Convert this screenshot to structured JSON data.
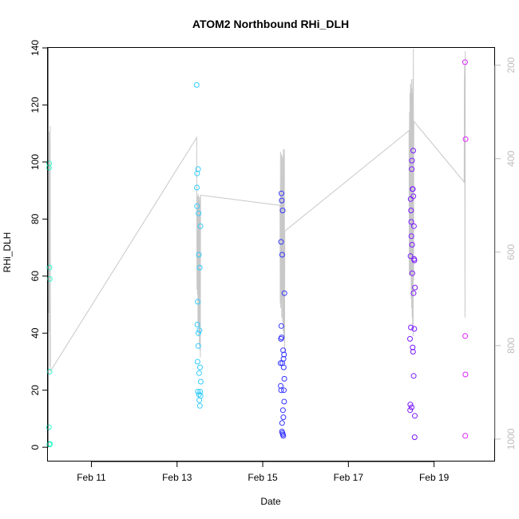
{
  "chart_data": {
    "type": "scatter",
    "title": "ATOM2 Northbound RHi_DLH",
    "xlabel": "Date",
    "ylabel": "RHi_DLH",
    "xlim": [
      "2017-02-09 23:38",
      "2017-02-20 10:10"
    ],
    "ylim": [
      -5,
      140
    ],
    "x_ticks": [
      "Feb 11",
      "Feb 13",
      "Feb 15",
      "Feb 17",
      "Feb 19"
    ],
    "y_ticks": [
      0,
      20,
      40,
      60,
      80,
      100,
      120,
      140
    ],
    "y2_label": "",
    "y2_ticks": [
      200,
      400,
      600,
      800,
      1000
    ],
    "y2_lim": [
      1048,
      163
    ],
    "grid": false,
    "legend": "none",
    "colors": {
      "flight1": "#33ffcc",
      "flight2": "#33ccff",
      "flight3": "#3333ff",
      "flight4": "#7a1aff",
      "flight5": "#dd22ff",
      "pressure_line": "#c8c8c8",
      "axis": "#000000",
      "right_axis": "#bdbdbd"
    },
    "series": [
      {
        "values": [
          [
            "2017-02-10 00:10",
            7
          ],
          [
            "2017-02-10 00:14",
            98
          ],
          [
            "2017-02-10 00:18",
            99.5
          ],
          [
            "2017-02-10 00:24",
            1
          ],
          [
            "2017-02-10 00:30",
            63
          ],
          [
            "2017-02-10 00:34",
            26.5
          ],
          [
            "2017-02-10 00:38",
            59
          ],
          [
            "2017-02-10 00:42",
            1
          ],
          [
            "2017-02-10 00:46",
            1.2
          ]
        ]
      },
      {
        "values": [
          [
            "2017-02-13 11:00",
            127
          ],
          [
            "2017-02-13 11:05",
            91
          ],
          [
            "2017-02-13 11:10",
            84.5
          ],
          [
            "2017-02-13 11:16",
            96
          ],
          [
            "2017-02-13 11:22",
            43
          ],
          [
            "2017-02-13 11:28",
            30
          ],
          [
            "2017-02-13 11:34",
            51
          ],
          [
            "2017-02-13 11:40",
            19.5
          ],
          [
            "2017-02-13 11:46",
            97.5
          ],
          [
            "2017-02-13 11:52",
            35.5
          ],
          [
            "2017-02-13 11:58",
            40
          ],
          [
            "2017-02-13 12:04",
            82
          ],
          [
            "2017-02-13 12:10",
            67.5
          ],
          [
            "2017-02-13 12:16",
            18.5
          ],
          [
            "2017-02-13 12:22",
            26
          ],
          [
            "2017-02-13 12:28",
            16.5
          ],
          [
            "2017-02-13 12:34",
            41
          ],
          [
            "2017-02-13 12:40",
            63
          ],
          [
            "2017-02-13 12:46",
            14.5
          ],
          [
            "2017-02-13 12:52",
            28
          ],
          [
            "2017-02-13 12:58",
            19.5
          ],
          [
            "2017-02-13 13:04",
            77.5
          ],
          [
            "2017-02-13 13:10",
            18
          ],
          [
            "2017-02-13 13:16",
            23
          ]
        ]
      },
      {
        "values": [
          [
            "2017-02-15 10:00",
            29.5
          ],
          [
            "2017-02-15 10:05",
            21.5
          ],
          [
            "2017-02-15 10:10",
            38
          ],
          [
            "2017-02-15 10:15",
            72
          ],
          [
            "2017-02-15 10:20",
            20
          ],
          [
            "2017-02-15 10:25",
            42.5
          ],
          [
            "2017-02-15 10:30",
            89
          ],
          [
            "2017-02-15 10:35",
            38.5
          ],
          [
            "2017-02-15 10:40",
            86.5
          ],
          [
            "2017-02-15 10:45",
            5.5
          ],
          [
            "2017-02-15 10:50",
            8.5
          ],
          [
            "2017-02-15 10:55",
            67.5
          ],
          [
            "2017-02-15 11:00",
            29.5
          ],
          [
            "2017-02-15 11:05",
            5
          ],
          [
            "2017-02-15 11:10",
            83
          ],
          [
            "2017-02-15 11:15",
            4.5
          ],
          [
            "2017-02-15 11:20",
            13
          ],
          [
            "2017-02-15 11:25",
            34
          ],
          [
            "2017-02-15 11:30",
            4
          ],
          [
            "2017-02-15 11:35",
            10.5
          ],
          [
            "2017-02-15 11:40",
            31
          ],
          [
            "2017-02-15 11:45",
            28
          ],
          [
            "2017-02-15 11:50",
            20
          ],
          [
            "2017-02-15 11:55",
            32.5
          ],
          [
            "2017-02-15 12:00",
            16
          ],
          [
            "2017-02-15 12:05",
            24
          ],
          [
            "2017-02-15 12:10",
            54
          ]
        ]
      },
      {
        "values": [
          [
            "2017-02-18 10:30",
            38
          ],
          [
            "2017-02-18 10:36",
            13
          ],
          [
            "2017-02-18 10:42",
            15
          ],
          [
            "2017-02-18 10:48",
            67
          ],
          [
            "2017-02-18 10:54",
            87
          ],
          [
            "2017-02-18 11:00",
            42
          ],
          [
            "2017-02-18 11:06",
            83
          ],
          [
            "2017-02-18 11:12",
            79
          ],
          [
            "2017-02-18 11:18",
            74
          ],
          [
            "2017-02-18 11:24",
            14
          ],
          [
            "2017-02-18 11:30",
            97.5
          ],
          [
            "2017-02-18 11:36",
            100.5
          ],
          [
            "2017-02-18 11:42",
            71
          ],
          [
            "2017-02-18 11:48",
            61
          ],
          [
            "2017-02-18 11:54",
            90.5
          ],
          [
            "2017-02-18 12:00",
            35
          ],
          [
            "2017-02-18 12:06",
            90.5
          ],
          [
            "2017-02-18 12:12",
            33.5
          ],
          [
            "2017-02-18 12:18",
            104
          ],
          [
            "2017-02-18 12:24",
            88
          ],
          [
            "2017-02-18 12:30",
            54
          ],
          [
            "2017-02-18 12:36",
            25
          ],
          [
            "2017-02-18 12:42",
            77.5
          ],
          [
            "2017-02-18 12:48",
            66
          ],
          [
            "2017-02-18 12:54",
            41.5
          ],
          [
            "2017-02-18 13:00",
            65.5
          ],
          [
            "2017-02-18 13:06",
            3.5
          ],
          [
            "2017-02-18 13:12",
            11
          ],
          [
            "2017-02-18 13:18",
            56
          ]
        ]
      },
      {
        "values": [
          [
            "2017-02-19 17:20",
            135
          ],
          [
            "2017-02-19 17:25",
            39
          ],
          [
            "2017-02-19 17:30",
            4
          ],
          [
            "2017-02-19 17:35",
            25.5
          ],
          [
            "2017-02-19 17:40",
            108
          ]
        ]
      }
    ],
    "pressure_line": [
      [
        "2017-02-10 00:10",
        730
      ],
      [
        "2017-02-10 00:20",
        342
      ],
      [
        "2017-02-10 00:30",
        770
      ],
      [
        "2017-02-10 00:38",
        358
      ],
      [
        "2017-02-10 00:46",
        845
      ],
      [
        "2017-02-10 00:54",
        330
      ],
      [
        "2017-02-10 01:02",
        855
      ],
      [
        "2017-02-13 11:00",
        355
      ],
      [
        "2017-02-13 11:10",
        680
      ],
      [
        "2017-02-13 11:18",
        490
      ],
      [
        "2017-02-13 11:26",
        690
      ],
      [
        "2017-02-13 11:34",
        480
      ],
      [
        "2017-02-13 11:42",
        755
      ],
      [
        "2017-02-13 11:50",
        475
      ],
      [
        "2017-02-13 11:58",
        760
      ],
      [
        "2017-02-13 12:06",
        480
      ],
      [
        "2017-02-13 12:14",
        780
      ],
      [
        "2017-02-13 12:22",
        490
      ],
      [
        "2017-02-13 12:30",
        800
      ],
      [
        "2017-02-13 12:38",
        482
      ],
      [
        "2017-02-13 12:46",
        810
      ],
      [
        "2017-02-13 12:54",
        490
      ],
      [
        "2017-02-13 13:02",
        825
      ],
      [
        "2017-02-13 13:10",
        478
      ],
      [
        "2017-02-15 09:40",
        500
      ],
      [
        "2017-02-15 09:50",
        710
      ],
      [
        "2017-02-15 09:58",
        385
      ],
      [
        "2017-02-15 10:06",
        720
      ],
      [
        "2017-02-15 10:14",
        480
      ],
      [
        "2017-02-15 10:22",
        705
      ],
      [
        "2017-02-15 10:30",
        390
      ],
      [
        "2017-02-15 10:38",
        740
      ],
      [
        "2017-02-15 10:46",
        560
      ],
      [
        "2017-02-15 10:54",
        700
      ],
      [
        "2017-02-15 11:02",
        395
      ],
      [
        "2017-02-15 11:10",
        750
      ],
      [
        "2017-02-15 11:18",
        400
      ],
      [
        "2017-02-15 11:26",
        770
      ],
      [
        "2017-02-15 11:34",
        380
      ],
      [
        "2017-02-15 11:42",
        780
      ],
      [
        "2017-02-15 11:50",
        390
      ],
      [
        "2017-02-15 11:58",
        790
      ],
      [
        "2017-02-15 12:06",
        380
      ],
      [
        "2017-02-15 12:14",
        815
      ],
      [
        "2017-02-15 12:22",
        555
      ],
      [
        "2017-02-18 10:00",
        340
      ],
      [
        "2017-02-18 10:08",
        650
      ],
      [
        "2017-02-18 10:16",
        300
      ],
      [
        "2017-02-18 10:24",
        650
      ],
      [
        "2017-02-18 10:32",
        260
      ],
      [
        "2017-02-18 10:40",
        650
      ],
      [
        "2017-02-18 10:48",
        240
      ],
      [
        "2017-02-18 10:56",
        650
      ],
      [
        "2017-02-18 11:04",
        250
      ],
      [
        "2017-02-18 11:12",
        700
      ],
      [
        "2017-02-18 11:20",
        230
      ],
      [
        "2017-02-18 11:28",
        720
      ],
      [
        "2017-02-18 11:36",
        250
      ],
      [
        "2017-02-18 11:44",
        740
      ],
      [
        "2017-02-18 11:52",
        260
      ],
      [
        "2017-02-18 12:00",
        760
      ],
      [
        "2017-02-18 12:08",
        230
      ],
      [
        "2017-02-18 12:16",
        780
      ],
      [
        "2017-02-18 12:24",
        165
      ],
      [
        "2017-02-18 12:32",
        660
      ],
      [
        "2017-02-18 12:40",
        320
      ],
      [
        "2017-02-19 16:50",
        450
      ],
      [
        "2017-02-19 17:00",
        230
      ],
      [
        "2017-02-19 17:10",
        200
      ],
      [
        "2017-02-19 17:20",
        740
      ],
      [
        "2017-02-19 17:30",
        170
      ]
    ]
  }
}
